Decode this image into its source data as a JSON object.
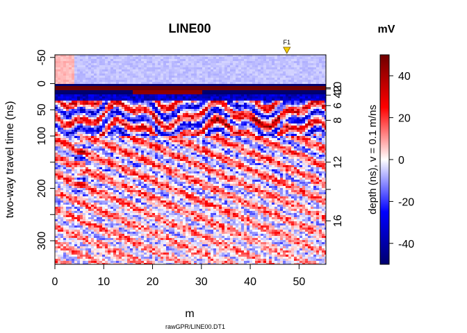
{
  "chart_data": {
    "type": "heatmap",
    "title": "LINE00",
    "xlabel": "m",
    "ylabel": "two-way travel time (ns)",
    "xlim": [
      0,
      55.5
    ],
    "ylim": [
      -55,
      345
    ],
    "x_ticks": [
      0,
      10,
      20,
      30,
      40,
      50
    ],
    "y_ticks": [
      -50,
      0,
      50,
      100,
      150,
      200,
      250,
      300
    ],
    "y_tick_labels": [
      "-50",
      "0",
      "50",
      "100",
      "",
      "200",
      "",
      "300"
    ],
    "depth_axis": {
      "label": "depth (ns),   v = 0.1 m/ns",
      "ticks": [
        2,
        4,
        6,
        8,
        10,
        12,
        14,
        16
      ],
      "tick_labels": [
        "2",
        "4",
        "6",
        "8",
        "10",
        "12",
        "",
        "16"
      ],
      "velocity_m_per_ns": 0.1,
      "zero_time_ns": 6
    },
    "marker": {
      "label": "F1",
      "x": 47.5,
      "color": "#f5d000"
    },
    "colorbar": {
      "title": "mV",
      "range": [
        -50,
        50
      ],
      "ticks": [
        40,
        20,
        0,
        -20,
        -40
      ],
      "colors": [
        "#00006e",
        "#0000ff",
        "#ffffff",
        "#ff0000",
        "#6e0000"
      ]
    },
    "footnote": "rawGPR/LINE00.DT1"
  }
}
